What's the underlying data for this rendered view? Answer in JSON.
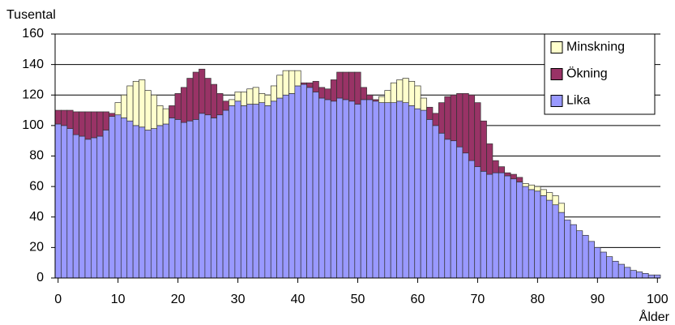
{
  "chart_data": {
    "type": "stacked_bar",
    "y_label": "Tusental",
    "x_label": "Ålder",
    "x": [
      0,
      1,
      2,
      3,
      4,
      5,
      6,
      7,
      8,
      9,
      10,
      11,
      12,
      13,
      14,
      15,
      16,
      17,
      18,
      19,
      20,
      21,
      22,
      23,
      24,
      25,
      26,
      27,
      28,
      29,
      30,
      31,
      32,
      33,
      34,
      35,
      36,
      37,
      38,
      39,
      40,
      41,
      42,
      43,
      44,
      45,
      46,
      47,
      48,
      49,
      50,
      51,
      52,
      53,
      54,
      55,
      56,
      57,
      58,
      59,
      60,
      61,
      62,
      63,
      64,
      65,
      66,
      67,
      68,
      69,
      70,
      71,
      72,
      73,
      74,
      75,
      76,
      77,
      78,
      79,
      80,
      81,
      82,
      83,
      84,
      85,
      86,
      87,
      88,
      89,
      90,
      91,
      92,
      93,
      94,
      95,
      96,
      97,
      98,
      99,
      100
    ],
    "series": [
      {
        "name": "Lika",
        "color": "#9999ff",
        "values": [
          101,
          100,
          98,
          94,
          93,
          91,
          92,
          93,
          97,
          106,
          107,
          105,
          103,
          100,
          99,
          97,
          98,
          100,
          101,
          105,
          104,
          102,
          103,
          104,
          108,
          107,
          105,
          107,
          110,
          113,
          116,
          113,
          114,
          114,
          115,
          113,
          116,
          118,
          120,
          121,
          126,
          127,
          125,
          122,
          118,
          117,
          116,
          118,
          117,
          116,
          114,
          117,
          117,
          116,
          115,
          115,
          115,
          116,
          115,
          113,
          111,
          110,
          104,
          100,
          95,
          91,
          90,
          86,
          82,
          77,
          73,
          70,
          68,
          69,
          69,
          67,
          65,
          63,
          60,
          58,
          57,
          54,
          51,
          48,
          43,
          38,
          35,
          31,
          28,
          24,
          20,
          17,
          14,
          11,
          9,
          7,
          5,
          4,
          3,
          2,
          2
        ]
      },
      {
        "name": "Ökning",
        "color": "#993366",
        "values": [
          9,
          10,
          12,
          15,
          16,
          18,
          17,
          16,
          12,
          2,
          0,
          0,
          0,
          0,
          0,
          0,
          0,
          0,
          0,
          8,
          17,
          23,
          28,
          31,
          29,
          24,
          22,
          14,
          6,
          0,
          0,
          0,
          0,
          0,
          0,
          0,
          0,
          0,
          0,
          0,
          0,
          1,
          3,
          7,
          7,
          7,
          14,
          17,
          18,
          19,
          21,
          8,
          3,
          1,
          0,
          0,
          0,
          0,
          0,
          0,
          0,
          0,
          8,
          8,
          20,
          28,
          30,
          35,
          39,
          43,
          42,
          33,
          20,
          8,
          4,
          2,
          3,
          3,
          0,
          0,
          0,
          0,
          0,
          0,
          0,
          0,
          0,
          0,
          0,
          0,
          0,
          0,
          0,
          0,
          0,
          0,
          0,
          0,
          0,
          0,
          0
        ]
      },
      {
        "name": "Minskning",
        "color": "#ffffcc",
        "values": [
          0,
          0,
          0,
          0,
          0,
          0,
          0,
          0,
          0,
          0,
          8,
          15,
          23,
          29,
          31,
          26,
          22,
          13,
          10,
          0,
          0,
          0,
          0,
          0,
          0,
          0,
          0,
          0,
          0,
          4,
          6,
          9,
          10,
          11,
          6,
          7,
          10,
          15,
          16,
          15,
          10,
          0,
          0,
          0,
          0,
          0,
          0,
          0,
          0,
          0,
          0,
          0,
          0,
          0,
          4,
          8,
          13,
          14,
          16,
          16,
          15,
          8,
          0,
          0,
          0,
          0,
          0,
          0,
          0,
          0,
          0,
          0,
          0,
          0,
          0,
          0,
          0,
          0,
          2,
          3,
          3,
          4,
          5,
          6,
          6,
          0,
          0,
          0,
          0,
          0,
          0,
          0,
          0,
          0,
          0,
          0,
          0,
          0,
          0,
          0,
          0
        ]
      }
    ],
    "xlim": [
      -0.5,
      100.5
    ],
    "xticks": [
      0,
      10,
      20,
      30,
      40,
      50,
      60,
      70,
      80,
      90,
      100
    ],
    "ylim": [
      0,
      160
    ],
    "yticks": [
      0,
      20,
      40,
      60,
      80,
      100,
      120,
      140,
      160
    ],
    "grid": true,
    "legend": "upper right"
  }
}
